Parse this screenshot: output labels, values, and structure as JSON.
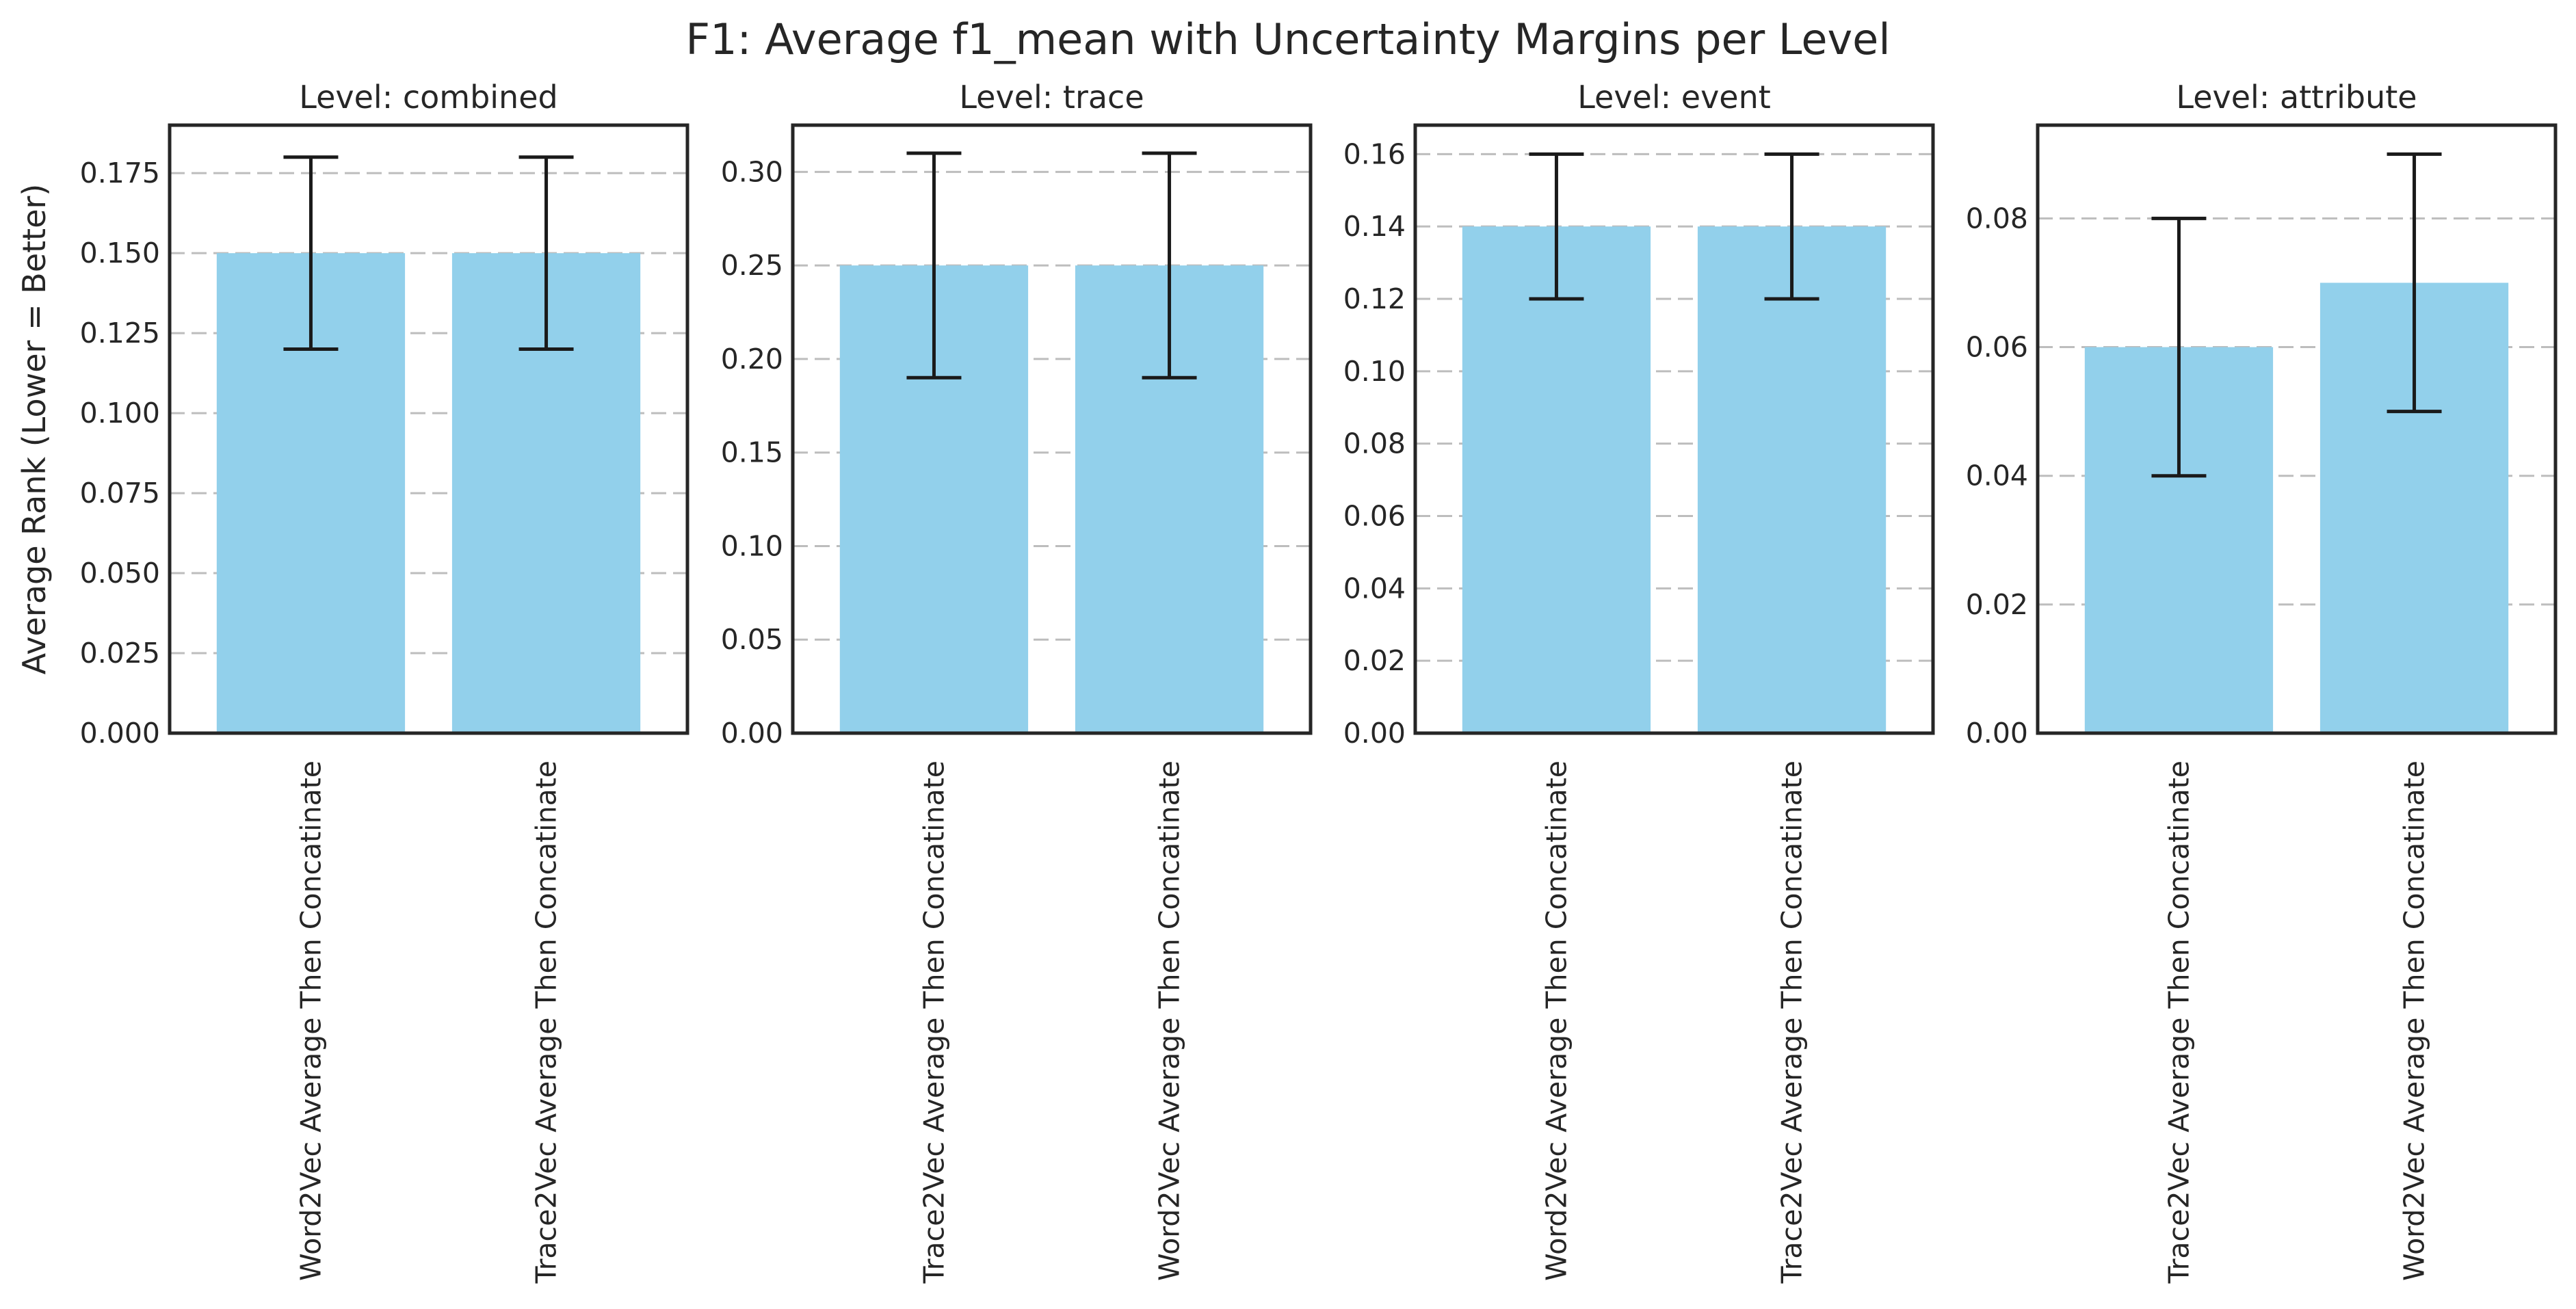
{
  "figure_title": "F1: Average f1_mean with Uncertainty Margins per Level",
  "shared_ylabel": "Average Rank (Lower = Better)",
  "colors": {
    "bar": "#92d0eb",
    "error_bar": "#1a1a1a",
    "grid": "#bdbdbd",
    "frame": "#262626"
  },
  "chart_data": [
    {
      "type": "bar",
      "title": "Level: combined",
      "categories": [
        "Word2Vec Average Then Concatinate",
        "Trace2Vec Average Then Concatinate"
      ],
      "values": [
        0.15,
        0.15
      ],
      "error_low": [
        0.12,
        0.12
      ],
      "error_high": [
        0.18,
        0.18
      ],
      "ylim": [
        0,
        0.19
      ],
      "yticks": [
        "0.000",
        "0.025",
        "0.050",
        "0.075",
        "0.100",
        "0.125",
        "0.150",
        "0.175"
      ],
      "ylabel": "Average Rank (Lower = Better)",
      "grid": "horizontal dashed"
    },
    {
      "type": "bar",
      "title": "Level: trace",
      "categories": [
        "Trace2Vec Average Then Concatinate",
        "Word2Vec Average Then Concatinate"
      ],
      "values": [
        0.25,
        0.25
      ],
      "error_low": [
        0.19,
        0.19
      ],
      "error_high": [
        0.31,
        0.31
      ],
      "ylim": [
        0,
        0.325
      ],
      "yticks": [
        "0.00",
        "0.05",
        "0.10",
        "0.15",
        "0.20",
        "0.25",
        "0.30"
      ],
      "ylabel": "",
      "grid": "horizontal dashed"
    },
    {
      "type": "bar",
      "title": "Level: event",
      "categories": [
        "Word2Vec Average Then Concatinate",
        "Trace2Vec Average Then Concatinate"
      ],
      "values": [
        0.14,
        0.14
      ],
      "error_low": [
        0.12,
        0.12
      ],
      "error_high": [
        0.16,
        0.16
      ],
      "ylim": [
        0,
        0.168
      ],
      "yticks": [
        "0.00",
        "0.02",
        "0.04",
        "0.06",
        "0.08",
        "0.10",
        "0.12",
        "0.14",
        "0.16"
      ],
      "ylabel": "",
      "grid": "horizontal dashed"
    },
    {
      "type": "bar",
      "title": "Level: attribute",
      "categories": [
        "Trace2Vec Average Then Concatinate",
        "Word2Vec Average Then Concatinate"
      ],
      "values": [
        0.06,
        0.07
      ],
      "error_low": [
        0.04,
        0.05
      ],
      "error_high": [
        0.08,
        0.09
      ],
      "ylim": [
        0,
        0.0945
      ],
      "yticks": [
        "0.00",
        "0.02",
        "0.04",
        "0.06",
        "0.08"
      ],
      "ylabel": "",
      "grid": "horizontal dashed"
    }
  ]
}
